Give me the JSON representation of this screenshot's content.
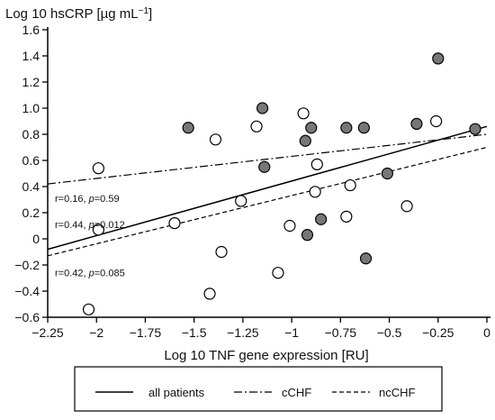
{
  "chart_data": {
    "type": "scatter",
    "title": "",
    "ylabel_prefix": "Log 10 hsCRP [µg mL",
    "ylabel_sup": "−1",
    "ylabel_suffix": "]",
    "xlabel": "Log 10 TNF gene expression [RU]",
    "xlim": [
      -2.25,
      0
    ],
    "ylim": [
      -0.6,
      1.6
    ],
    "xticks": [
      -2.25,
      -2,
      -1.75,
      -1.5,
      -1.25,
      -1,
      -0.75,
      -0.5,
      -0.25,
      0
    ],
    "xtick_labels": [
      "−2.25",
      "−2",
      "−1.75",
      "−1.5",
      "−1.25",
      "−1",
      "−0.75",
      "−0.5",
      "−0.25",
      "0"
    ],
    "yticks": [
      -0.6,
      -0.4,
      -0.2,
      0,
      0.2,
      0.4,
      0.6,
      0.8,
      1.0,
      1.2,
      1.4,
      1.6
    ],
    "ytick_labels": [
      "−0.6",
      "−0.4",
      "−0.2",
      "0",
      "0.2",
      "0.4",
      "0.6",
      "0.8",
      "1.0",
      "1.2",
      "1.4",
      "1.6"
    ],
    "grid": false,
    "series": [
      {
        "name": "cCHF",
        "marker": "filled",
        "color": "#777777",
        "points": [
          {
            "x": -1.53,
            "y": 0.85
          },
          {
            "x": -1.15,
            "y": 1.0
          },
          {
            "x": -1.14,
            "y": 0.55
          },
          {
            "x": -0.93,
            "y": 0.75
          },
          {
            "x": -0.9,
            "y": 0.85
          },
          {
            "x": -0.72,
            "y": 0.85
          },
          {
            "x": -0.63,
            "y": 0.85
          },
          {
            "x": -0.36,
            "y": 0.88
          },
          {
            "x": -0.25,
            "y": 1.38
          },
          {
            "x": -0.06,
            "y": 0.84
          },
          {
            "x": -0.51,
            "y": 0.5
          },
          {
            "x": -0.85,
            "y": 0.15
          },
          {
            "x": -0.92,
            "y": 0.03
          },
          {
            "x": -0.62,
            "y": -0.15
          }
        ]
      },
      {
        "name": "ncCHF",
        "marker": "open",
        "color": "#ffffff",
        "points": [
          {
            "x": -2.04,
            "y": -0.54
          },
          {
            "x": -1.99,
            "y": 0.54
          },
          {
            "x": -1.99,
            "y": 0.07
          },
          {
            "x": -1.6,
            "y": 0.12
          },
          {
            "x": -1.42,
            "y": -0.42
          },
          {
            "x": -1.39,
            "y": 0.76
          },
          {
            "x": -1.36,
            "y": -0.1
          },
          {
            "x": -1.26,
            "y": 0.29
          },
          {
            "x": -1.18,
            "y": 0.86
          },
          {
            "x": -1.07,
            "y": -0.26
          },
          {
            "x": -1.01,
            "y": 0.1
          },
          {
            "x": -0.94,
            "y": 0.96
          },
          {
            "x": -0.87,
            "y": 0.57
          },
          {
            "x": -0.88,
            "y": 0.36
          },
          {
            "x": -0.72,
            "y": 0.17
          },
          {
            "x": -0.7,
            "y": 0.41
          },
          {
            "x": -0.41,
            "y": 0.25
          },
          {
            "x": -0.26,
            "y": 0.9
          }
        ]
      }
    ],
    "regression_lines": [
      {
        "name": "all patients",
        "style": "solid",
        "from": [
          -2.25,
          -0.08
        ],
        "to": [
          0,
          0.86
        ]
      },
      {
        "name": "cCHF",
        "style": "dashdot",
        "from": [
          -2.25,
          0.42
        ],
        "to": [
          0,
          0.8
        ]
      },
      {
        "name": "ncCHF",
        "style": "dashed",
        "from": [
          -2.25,
          -0.13
        ],
        "to": [
          0,
          0.7
        ]
      }
    ],
    "annotations": [
      {
        "pre": "r=0.16, ",
        "p_label": "p",
        "post": "=0.59",
        "x": -2.25,
        "y": 0.31
      },
      {
        "pre": "r=0.44, ",
        "p_label": "p",
        "post": "=0.012",
        "x": -2.25,
        "y": 0.11
      },
      {
        "pre": "r=0.42, ",
        "p_label": "p",
        "post": "=0.085",
        "x": -2.25,
        "y": -0.26
      }
    ],
    "legend": {
      "placement": "bottom",
      "entries": [
        {
          "label": "all patients",
          "style": "solid"
        },
        {
          "label": "cCHF",
          "style": "dashdot"
        },
        {
          "label": "ncCHF",
          "style": "dashed"
        }
      ]
    }
  }
}
